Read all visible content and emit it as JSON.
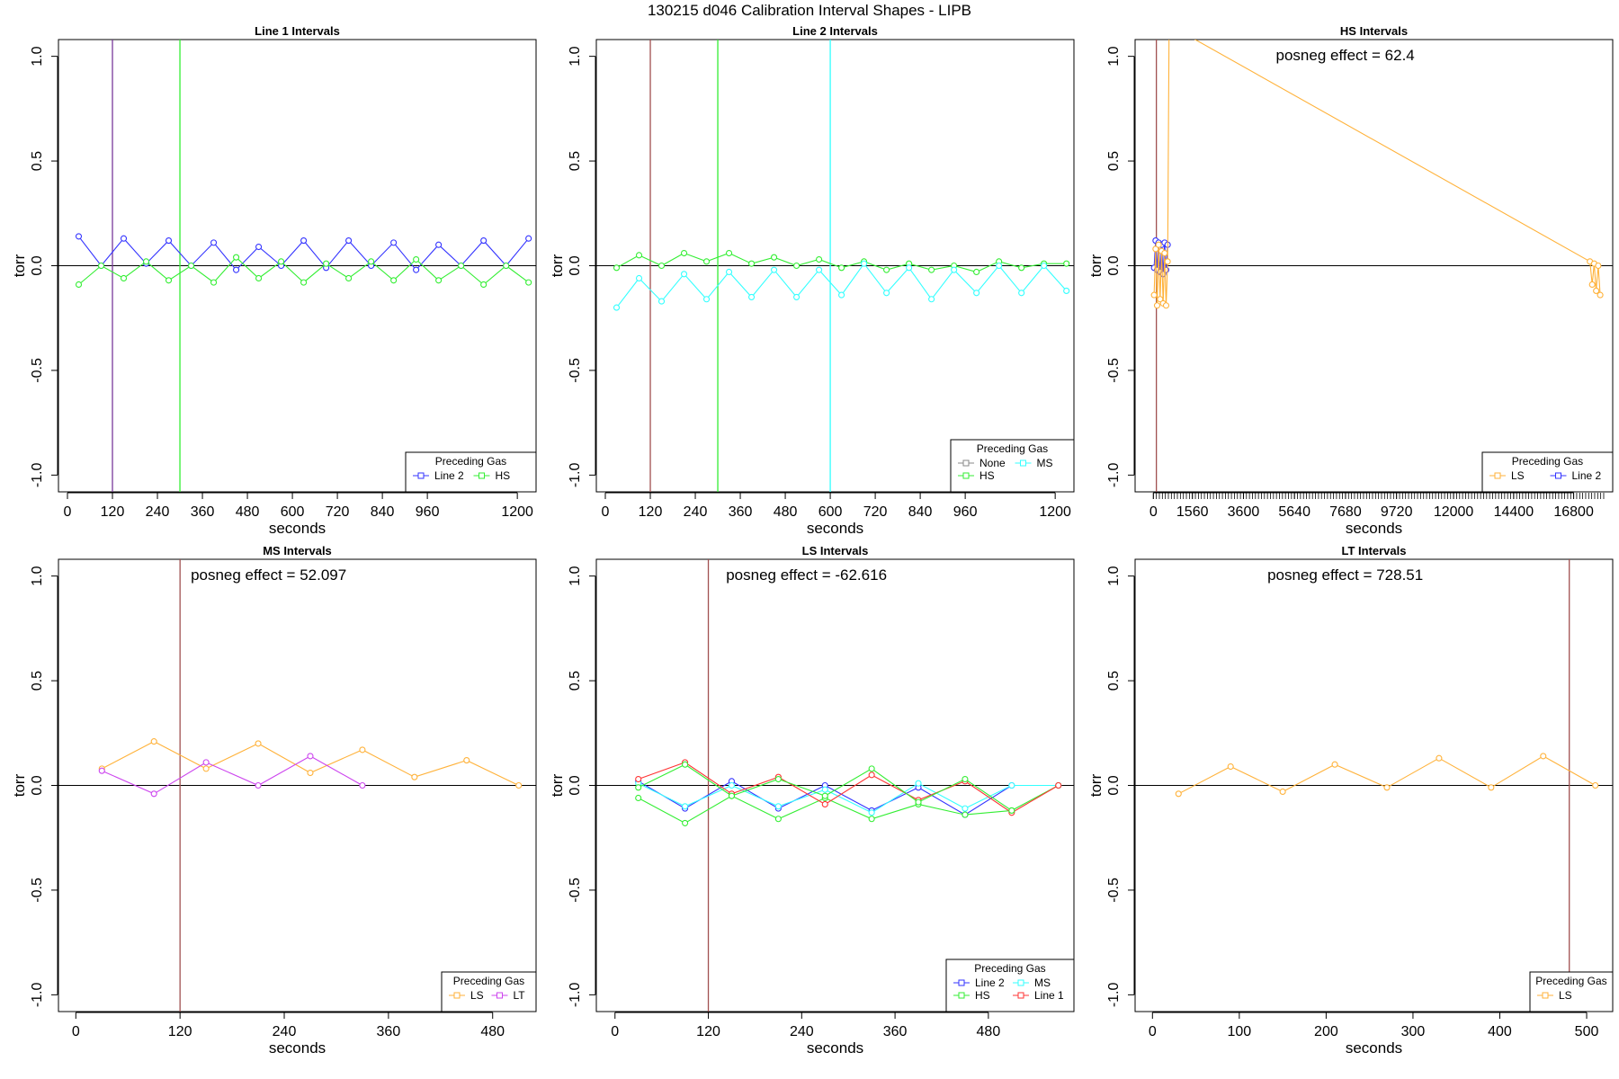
{
  "page": {
    "title": "130215   d046   Calibration Interval Shapes - LIPB"
  },
  "colors": {
    "Line 2": "#3333ff",
    "Line 1": "#ff3333",
    "HS": "#33ee33",
    "MS": "#33ffff",
    "LS": "#ffb23a",
    "LT": "#cc44ee",
    "None": "#888888",
    "vline_dark": "#a05050",
    "vline_purple": "#7a3a9a"
  },
  "chart_data": [
    {
      "type": "line",
      "title": "Line 1 Intervals",
      "xlabel": "seconds",
      "ylabel": "torr",
      "xlim": [
        -24,
        1250
      ],
      "ylim": [
        -1.08,
        1.08
      ],
      "xticks": [
        0,
        120,
        240,
        360,
        480,
        600,
        720,
        840,
        960,
        1200
      ],
      "yticks": [
        -1.0,
        -0.5,
        0.0,
        0.5,
        1.0
      ],
      "ytick_labels": [
        "-1.0",
        "-0.5",
        "0.0",
        "0.5",
        "1.0"
      ],
      "hline": 0,
      "vlines": [
        {
          "x": 120,
          "color": "#7a3a9a"
        },
        {
          "x": 300,
          "color": "#33ee33"
        }
      ],
      "series": [
        {
          "name": "Line 2",
          "color": "#3333ff",
          "x": [
            30,
            90,
            150,
            210,
            270,
            330,
            390,
            450,
            510,
            570,
            630,
            690,
            750,
            810,
            870,
            930,
            990,
            1050,
            1110,
            1170,
            1230
          ],
          "y": [
            0.14,
            0.0,
            0.13,
            0.01,
            0.12,
            0.0,
            0.11,
            -0.02,
            0.09,
            0.0,
            0.12,
            -0.01,
            0.12,
            0.0,
            0.11,
            -0.02,
            0.1,
            0.0,
            0.12,
            0.0,
            0.13
          ]
        },
        {
          "name": "HS",
          "color": "#33ee33",
          "x": [
            30,
            90,
            150,
            210,
            270,
            330,
            390,
            450,
            510,
            570,
            630,
            690,
            750,
            810,
            870,
            930,
            990,
            1050,
            1110,
            1170,
            1230
          ],
          "y": [
            -0.09,
            0.0,
            -0.06,
            0.02,
            -0.07,
            0.0,
            -0.08,
            0.04,
            -0.06,
            0.02,
            -0.08,
            0.01,
            -0.06,
            0.02,
            -0.07,
            0.03,
            -0.07,
            0.0,
            -0.09,
            0.0,
            -0.08
          ]
        }
      ],
      "legend": {
        "title": "Preceding Gas",
        "position": "bottom-right",
        "columns": 2,
        "entries": [
          "Line 2",
          "HS"
        ]
      },
      "annotation": ""
    },
    {
      "type": "line",
      "title": "Line 2 Intervals",
      "xlabel": "seconds",
      "ylabel": "torr",
      "xlim": [
        -24,
        1250
      ],
      "ylim": [
        -1.08,
        1.08
      ],
      "xticks": [
        0,
        120,
        240,
        360,
        480,
        600,
        720,
        840,
        960,
        1200
      ],
      "yticks": [
        -1.0,
        -0.5,
        0.0,
        0.5,
        1.0
      ],
      "ytick_labels": [
        "-1.0",
        "-0.5",
        "0.0",
        "0.5",
        "1.0"
      ],
      "hline": 0,
      "vlines": [
        {
          "x": 120,
          "color": "#a05050"
        },
        {
          "x": 300,
          "color": "#33ee33"
        },
        {
          "x": 600,
          "color": "#33ffff"
        }
      ],
      "series": [
        {
          "name": "HS",
          "color": "#33ee33",
          "x": [
            30,
            90,
            150,
            210,
            270,
            330,
            390,
            450,
            510,
            570,
            630,
            690,
            750,
            810,
            870,
            930,
            990,
            1050,
            1110,
            1170,
            1230
          ],
          "y": [
            -0.01,
            0.05,
            0.0,
            0.06,
            0.02,
            0.06,
            0.01,
            0.04,
            0.0,
            0.03,
            -0.01,
            0.02,
            -0.02,
            0.01,
            -0.02,
            0.0,
            -0.03,
            0.02,
            -0.01,
            0.01,
            0.01
          ]
        },
        {
          "name": "MS",
          "color": "#33ffff",
          "x": [
            30,
            90,
            150,
            210,
            270,
            330,
            390,
            450,
            510,
            570,
            630,
            690,
            750,
            810,
            870,
            930,
            990,
            1050,
            1110,
            1170,
            1230
          ],
          "y": [
            -0.2,
            -0.06,
            -0.17,
            -0.04,
            -0.16,
            -0.03,
            -0.15,
            -0.02,
            -0.15,
            -0.02,
            -0.14,
            0.01,
            -0.13,
            -0.01,
            -0.16,
            -0.02,
            -0.13,
            0.0,
            -0.13,
            0.0,
            -0.12
          ]
        }
      ],
      "legend": {
        "title": "Preceding Gas",
        "position": "bottom-right",
        "columns": 2,
        "entries": [
          "None",
          "MS",
          "HS"
        ]
      },
      "annotation": ""
    },
    {
      "type": "line",
      "title": "HS Intervals",
      "xlabel": "seconds",
      "ylabel": "torr",
      "xlim": [
        -730,
        18360
      ],
      "ylim": [
        -1.08,
        1.08
      ],
      "xticks": [
        0,
        1560,
        3600,
        5640,
        7680,
        9720,
        12000,
        14400,
        16800
      ],
      "minor_tick_step": 120,
      "minor_tick_max": 18000,
      "yticks": [
        -1.0,
        -0.5,
        0.0,
        0.5,
        1.0
      ],
      "ytick_labels": [
        "-1.0",
        "-0.5",
        "0.0",
        "0.5",
        "1.0"
      ],
      "hline": 0,
      "vlines": [
        {
          "x": 120,
          "color": "#a05050"
        }
      ],
      "series": [
        {
          "name": "Line 2",
          "color": "#3333ff",
          "x": [
            30,
            90,
            150,
            210,
            270,
            330,
            390,
            450,
            510,
            570
          ],
          "y": [
            -0.01,
            0.12,
            -0.02,
            0.11,
            -0.03,
            0.1,
            -0.04,
            0.11,
            -0.02,
            0.1
          ]
        },
        {
          "name": "LS",
          "color": "#ffb23a",
          "x": [
            30,
            90,
            150,
            210,
            270,
            330,
            390,
            450,
            510,
            570,
            630,
            17450,
            17540,
            17620,
            17700,
            17780,
            17860
          ],
          "y": [
            -0.14,
            0.08,
            -0.19,
            0.1,
            -0.16,
            0.07,
            -0.18,
            0.06,
            -0.19,
            0.02,
            1.15,
            0.02,
            -0.09,
            0.01,
            -0.12,
            0.0,
            -0.14
          ]
        }
      ],
      "legend": {
        "title": "Preceding Gas",
        "position": "bottom-right",
        "columns": 2,
        "entries": [
          "LS",
          "Line 2"
        ]
      },
      "annotation": "posneg effect = 62.4"
    },
    {
      "type": "line",
      "title": "MS Intervals",
      "xlabel": "seconds",
      "ylabel": "torr",
      "xlim": [
        -20,
        530
      ],
      "ylim": [
        -1.08,
        1.08
      ],
      "xticks": [
        0,
        120,
        240,
        360,
        480
      ],
      "yticks": [
        -1.0,
        -0.5,
        0.0,
        0.5,
        1.0
      ],
      "ytick_labels": [
        "-1.0",
        "-0.5",
        "0.0",
        "0.5",
        "1.0"
      ],
      "hline": 0,
      "vlines": [
        {
          "x": 120,
          "color": "#a05050"
        }
      ],
      "series": [
        {
          "name": "LS",
          "color": "#ffb23a",
          "x": [
            30,
            90,
            150,
            210,
            270,
            330,
            390,
            450,
            510
          ],
          "y": [
            0.08,
            0.21,
            0.08,
            0.2,
            0.06,
            0.17,
            0.04,
            0.12,
            0.0
          ]
        },
        {
          "name": "LT",
          "color": "#cc44ee",
          "x": [
            30,
            90,
            150,
            210,
            270,
            330
          ],
          "y": [
            0.07,
            -0.04,
            0.11,
            0.0,
            0.14,
            0.0
          ]
        }
      ],
      "legend": {
        "title": "Preceding Gas",
        "position": "bottom-right",
        "columns": 2,
        "entries": [
          "LS",
          "LT"
        ]
      },
      "annotation": "posneg effect = 52.097"
    },
    {
      "type": "line",
      "title": "LS Intervals",
      "xlabel": "seconds",
      "ylabel": "torr",
      "xlim": [
        -24,
        590
      ],
      "ylim": [
        -1.08,
        1.08
      ],
      "xticks": [
        0,
        120,
        240,
        360,
        480
      ],
      "yticks": [
        -1.0,
        -0.5,
        0.0,
        0.5,
        1.0
      ],
      "ytick_labels": [
        "-1.0",
        "-0.5",
        "0.0",
        "0.5",
        "1.0"
      ],
      "hline": 0,
      "vlines": [
        {
          "x": 120,
          "color": "#a05050"
        }
      ],
      "series": [
        {
          "name": "Line 2",
          "color": "#3333ff",
          "x": [
            30,
            90,
            150,
            210,
            270,
            330,
            390,
            450,
            510,
            570
          ],
          "y": [
            0.02,
            -0.11,
            0.02,
            -0.11,
            0.0,
            -0.12,
            -0.01,
            -0.14,
            0.0,
            0.0
          ]
        },
        {
          "name": "MS",
          "color": "#33ffff",
          "x": [
            30,
            90,
            150,
            210,
            270,
            330,
            390,
            450,
            510,
            570
          ],
          "y": [
            0.01,
            -0.1,
            0.0,
            -0.1,
            -0.02,
            -0.13,
            0.01,
            -0.11,
            0.0,
            0.0
          ]
        },
        {
          "name": "HS",
          "color": "#33ee33",
          "x": [
            30,
            90,
            150,
            210,
            270,
            330,
            390,
            450,
            510,
            570
          ],
          "y": [
            -0.06,
            -0.18,
            -0.05,
            -0.16,
            -0.06,
            -0.16,
            -0.09,
            -0.14,
            -0.12,
            0.0
          ]
        },
        {
          "name": "Line 1",
          "color": "#ff3333",
          "x": [
            30,
            90,
            150,
            210,
            270,
            330,
            390,
            450,
            510,
            570
          ],
          "y": [
            0.03,
            0.11,
            -0.04,
            0.04,
            -0.09,
            0.05,
            -0.07,
            0.02,
            -0.13,
            0.0
          ]
        },
        {
          "name": "HS",
          "color": "#33ee33",
          "x": [
            30,
            90,
            150,
            210,
            270,
            330,
            390,
            450,
            510
          ],
          "y": [
            -0.01,
            0.1,
            -0.05,
            0.03,
            -0.05,
            0.08,
            -0.08,
            0.03,
            -0.12
          ]
        }
      ],
      "legend": {
        "title": "Preceding Gas",
        "position": "bottom-right",
        "columns": 2,
        "entries": [
          "Line 2",
          "MS",
          "HS",
          "Line 1"
        ]
      },
      "annotation": "posneg effect = -62.616"
    },
    {
      "type": "line",
      "title": "LT Intervals",
      "xlabel": "seconds",
      "ylabel": "torr",
      "xlim": [
        -20,
        530
      ],
      "ylim": [
        -1.08,
        1.08
      ],
      "xticks": [
        0,
        100,
        200,
        300,
        400,
        500
      ],
      "yticks": [
        -1.0,
        -0.5,
        0.0,
        0.5,
        1.0
      ],
      "ytick_labels": [
        "-1.0",
        "-0.5",
        "0.0",
        "0.5",
        "1.0"
      ],
      "hline": 0,
      "vlines": [
        {
          "x": 480,
          "color": "#a05050"
        }
      ],
      "series": [
        {
          "name": "LS",
          "color": "#ffb23a",
          "x": [
            30,
            90,
            150,
            210,
            270,
            330,
            390,
            450,
            510
          ],
          "y": [
            -0.04,
            0.09,
            -0.03,
            0.1,
            -0.01,
            0.13,
            -0.01,
            0.14,
            0.0
          ]
        }
      ],
      "legend": {
        "title": "Preceding Gas",
        "position": "bottom-right",
        "columns": 2,
        "entries": [
          "LS"
        ]
      },
      "annotation": "posneg effect = 728.51"
    }
  ]
}
